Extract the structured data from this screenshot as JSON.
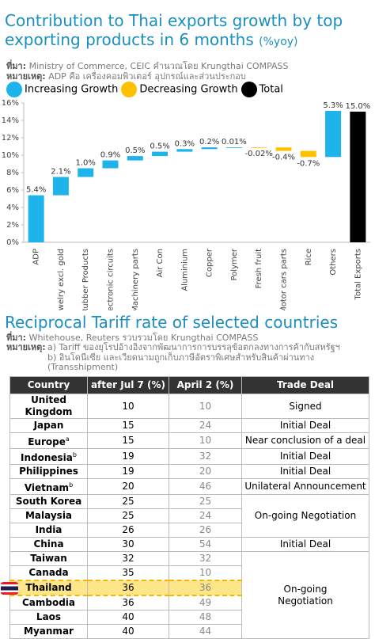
{
  "chart_data": {
    "type": "waterfall",
    "title": "Contribution to Thai exports growth by top exporting products in 6 months",
    "subtitle": "(%yoy)",
    "source_label": "ที่มา:",
    "source": "Ministry of Commerce, CEIC คำนวณโดย Krungthai COMPASS",
    "note_label": "หมายเหตุ:",
    "note": "ADP คือ เครื่องคอมพิวเตอร์ อุปกรณ์และส่วนประกอบ",
    "legend": [
      {
        "name": "Increasing Growth",
        "color": "#1fb3ec"
      },
      {
        "name": "Decreasing Growth",
        "color": "#ffc000"
      },
      {
        "name": "Total",
        "color": "#000000"
      }
    ],
    "categories": [
      "ADP",
      "Jewelry excl. gold",
      "Rubber Products",
      "Electronic circuits",
      "Machinery parts",
      "Air Con",
      "Aluminium",
      "Copper",
      "Polymer",
      "Fresh fruit",
      "Motor cars parts",
      "Rice",
      "Others",
      "Total Exports"
    ],
    "values": [
      5.4,
      2.1,
      1.0,
      0.9,
      0.5,
      0.5,
      0.3,
      0.2,
      0.01,
      -0.02,
      -0.4,
      -0.7,
      5.3,
      15.0
    ],
    "value_labels": [
      "5.4%",
      "2.1%",
      "1.0%",
      "0.9%",
      "0.5%",
      "0.5%",
      "0.3%",
      "0.2%",
      "0.01%",
      "-0.02%",
      "-0.4%",
      "-0.7%",
      "5.3%",
      "15.0%"
    ],
    "ylim": [
      0,
      16
    ],
    "yticks": [
      {
        "value": 0,
        "label": "0%"
      },
      {
        "value": 2,
        "label": "2%"
      },
      {
        "value": 4,
        "label": "4%"
      },
      {
        "value": 6,
        "label": "6%"
      },
      {
        "value": 8,
        "label": "8%"
      },
      {
        "value": 10,
        "label": "10%"
      },
      {
        "value": 12,
        "label": "12%"
      },
      {
        "value": 14,
        "label": "14%"
      },
      {
        "value": 16,
        "label": "16%"
      }
    ]
  },
  "tariff": {
    "title": "Reciprocal Tariff rate of selected countries",
    "source_label": "ที่มา:",
    "source": "Whitehouse, Reuters รวบรวมโดย Krungthai COMPASS",
    "note_label": "หมายเหตุ:",
    "notes": [
      "a) Tariff ของยุโรปอ้างอิงจากพัฒนาการการบรรลุข้อตกลงทางการค้ากับสหรัฐฯ",
      "b) อินโดนีเซีย และเวียดนามถูกเก็บภาษีอัตราพิเศษสำหรับสินค้าผ่านทาง (Transshipment)"
    ],
    "columns": [
      "Country",
      "after Jul 7 (%)",
      "April 2 (%)",
      "Trade Deal"
    ],
    "rows": [
      {
        "country": "United Kingdom",
        "after": 10,
        "april": 10,
        "deal": "Signed"
      },
      {
        "country": "Japan",
        "after": 15,
        "april": 24,
        "deal": "Initial Deal"
      },
      {
        "country": "Europe",
        "sup": "a",
        "after": 15,
        "april": 10,
        "deal": "Near conclusion of a deal"
      },
      {
        "country": "Indonesia",
        "sup": "b",
        "after": 19,
        "april": 32,
        "deal": "Initial Deal"
      },
      {
        "country": "Philippines",
        "after": 19,
        "april": 20,
        "deal": "Initial Deal"
      },
      {
        "country": "Vietnam",
        "sup": "b",
        "after": 20,
        "april": 46,
        "deal": "Unilateral Announcement"
      },
      {
        "country": "South Korea",
        "after": 25,
        "april": 25,
        "deal": "On-going Negotiation"
      },
      {
        "country": "Malaysia",
        "after": 25,
        "april": 24,
        "deal": null
      },
      {
        "country": "India",
        "after": 26,
        "april": 26,
        "deal": null
      },
      {
        "country": "China",
        "after": 30,
        "april": 54,
        "deal": "Initial Deal"
      },
      {
        "country": "Taiwan",
        "after": 32,
        "april": 32,
        "deal": "On-going Negotiation"
      },
      {
        "country": "Canada",
        "after": 35,
        "april": 10,
        "deal": null
      },
      {
        "country": "Thailand",
        "after": 36,
        "april": 36,
        "deal": null,
        "highlight": true
      },
      {
        "country": "Cambodia",
        "after": 36,
        "april": 49,
        "deal": null
      },
      {
        "country": "Laos",
        "after": 40,
        "april": 48,
        "deal": null
      },
      {
        "country": "Myanmar",
        "after": 40,
        "april": 44,
        "deal": null
      }
    ]
  }
}
